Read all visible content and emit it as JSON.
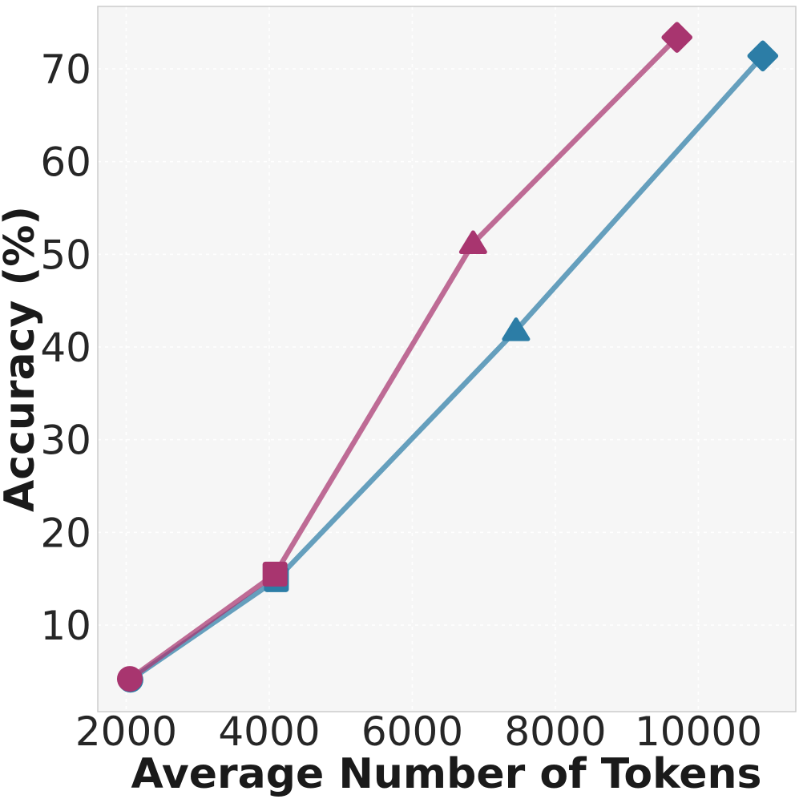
{
  "figure": {
    "background_color": "#ffffff",
    "plot_background_color": "#f6f6f6",
    "grid_color": "#ffffff",
    "spine_color": "#c9c9c9",
    "tick_label_color": "#262626",
    "axis_label_color": "#1a1a1a"
  },
  "chart_data": {
    "type": "line",
    "title": "",
    "xlabel": "Average Number of Tokens",
    "ylabel": "Accuracy (%)",
    "x_ticks": [
      2000,
      4000,
      6000,
      8000,
      10000
    ],
    "y_ticks": [
      10,
      20,
      30,
      40,
      50,
      60,
      70
    ],
    "xlim": [
      1600,
      11360
    ],
    "ylim": [
      0.7,
      76.7
    ],
    "grid": true,
    "grid_style": "dashed",
    "legend": false,
    "series": [
      {
        "id": "blue",
        "marker_color": "#2c7da6",
        "line_color": "rgba(44,125,166,0.72)",
        "points": [
          {
            "x": 2060,
            "y": 4.1,
            "marker": "circle"
          },
          {
            "x": 4100,
            "y": 14.9,
            "marker": "square"
          },
          {
            "x": 7450,
            "y": 41.8,
            "marker": "triangle"
          },
          {
            "x": 10900,
            "y": 71.4,
            "marker": "diamond"
          }
        ]
      },
      {
        "id": "pink",
        "marker_color": "#a8356f",
        "line_color": "rgba(168,53,111,0.72)",
        "points": [
          {
            "x": 2050,
            "y": 4.2,
            "marker": "circle"
          },
          {
            "x": 4080,
            "y": 15.5,
            "marker": "square"
          },
          {
            "x": 6850,
            "y": 51.2,
            "marker": "triangle"
          },
          {
            "x": 9700,
            "y": 73.4,
            "marker": "diamond"
          }
        ]
      }
    ]
  }
}
